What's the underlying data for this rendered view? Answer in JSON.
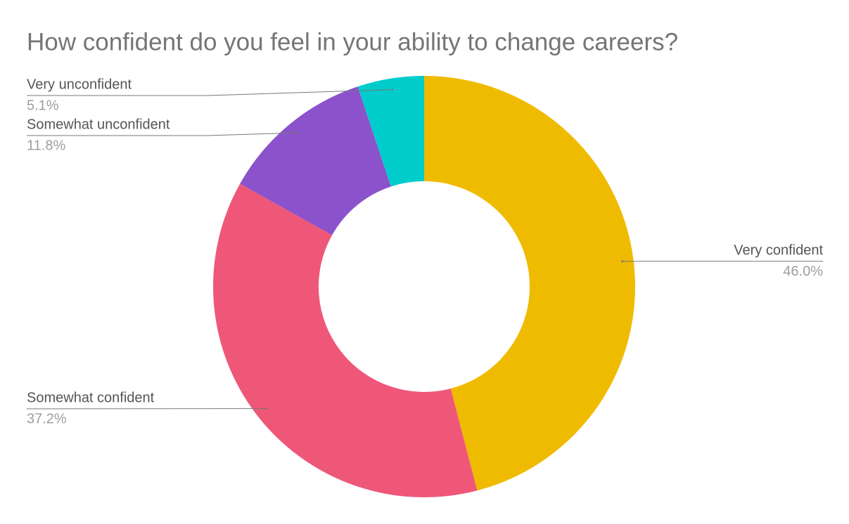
{
  "chart_data": {
    "type": "donut",
    "title": "How confident do you feel in your ability to change careers?",
    "categories": [
      "Very confident",
      "Somewhat confident",
      "Somewhat unconfident",
      "Very unconfident"
    ],
    "values": [
      46,
      37.2,
      11.8,
      5.1
    ],
    "value_labels": [
      "46.0%",
      "37.2%",
      "11.8%",
      "5.1%"
    ],
    "colors": [
      "#efbb00",
      "#ef5779",
      "#8b52cc",
      "#00cccc"
    ]
  }
}
